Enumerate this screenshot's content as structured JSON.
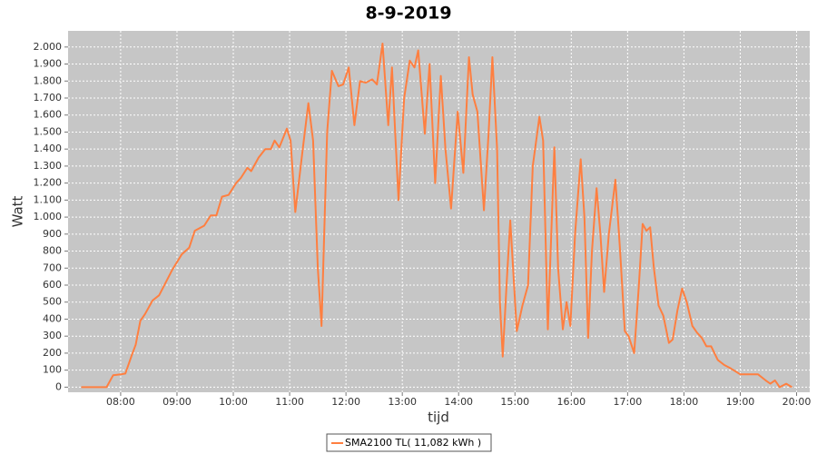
{
  "chart_data": {
    "type": "line",
    "title": "8-9-2019",
    "x_label": "tijd",
    "y_label": "Watt",
    "x": [
      "07:18",
      "07:45",
      "07:52",
      "08:00",
      "08:05",
      "08:12",
      "08:16",
      "08:21",
      "08:26",
      "08:34",
      "08:41",
      "08:55",
      "09:05",
      "09:13",
      "09:19",
      "09:29",
      "09:36",
      "09:42",
      "09:48",
      "09:55",
      "10:03",
      "10:08",
      "10:15",
      "10:19",
      "10:27",
      "10:34",
      "10:40",
      "10:44",
      "10:49",
      "10:57",
      "11:01",
      "11:06",
      "11:14",
      "11:20",
      "11:25",
      "11:30",
      "11:34",
      "11:40",
      "11:45",
      "11:52",
      "11:57",
      "12:03",
      "12:09",
      "12:15",
      "12:21",
      "12:28",
      "12:33",
      "12:39",
      "12:45",
      "12:49",
      "12:56",
      "13:02",
      "13:08",
      "13:13",
      "13:17",
      "13:24",
      "13:29",
      "13:35",
      "13:41",
      "13:46",
      "13:52",
      "13:59",
      "14:05",
      "14:11",
      "14:15",
      "14:20",
      "14:27",
      "14:32",
      "14:36",
      "14:41",
      "14:44",
      "14:47",
      "14:51",
      "14:55",
      "15:02",
      "15:08",
      "15:14",
      "15:19",
      "15:26",
      "15:30",
      "15:35",
      "15:42",
      "15:46",
      "15:51",
      "15:55",
      "15:59",
      "16:04",
      "16:10",
      "16:14",
      "16:18",
      "16:22",
      "16:27",
      "16:31",
      "16:35",
      "16:40",
      "16:47",
      "16:52",
      "16:57",
      "17:01",
      "17:07",
      "17:12",
      "17:16",
      "17:20",
      "17:24",
      "17:28",
      "17:33",
      "17:38",
      "17:44",
      "17:48",
      "17:53",
      "17:58",
      "18:03",
      "18:09",
      "18:14",
      "18:19",
      "18:24",
      "18:29",
      "18:36",
      "18:43",
      "18:50",
      "19:00",
      "19:19",
      "19:27",
      "19:32",
      "19:37",
      "19:42",
      "19:49",
      "19:55"
    ],
    "series": [
      {
        "name": "SMA2100 TL( 11,082 kWh )",
        "color": "#ff7f40",
        "values": [
          0,
          0,
          70,
          75,
          80,
          190,
          250,
          390,
          430,
          510,
          540,
          690,
          780,
          820,
          920,
          950,
          1010,
          1010,
          1120,
          1130,
          1200,
          1230,
          1290,
          1270,
          1350,
          1400,
          1400,
          1450,
          1410,
          1520,
          1450,
          1030,
          1400,
          1670,
          1450,
          700,
          360,
          1500,
          1860,
          1770,
          1780,
          1880,
          1540,
          1800,
          1790,
          1810,
          1780,
          2020,
          1540,
          1880,
          1100,
          1700,
          1920,
          1880,
          1980,
          1490,
          1900,
          1200,
          1830,
          1400,
          1050,
          1620,
          1260,
          1940,
          1720,
          1620,
          1040,
          1500,
          1940,
          1400,
          500,
          180,
          600,
          980,
          330,
          480,
          600,
          1300,
          1590,
          1450,
          340,
          1410,
          700,
          340,
          500,
          360,
          900,
          1340,
          1000,
          290,
          800,
          1170,
          900,
          560,
          900,
          1220,
          800,
          330,
          300,
          200,
          600,
          960,
          920,
          940,
          700,
          480,
          420,
          260,
          280,
          450,
          580,
          500,
          360,
          320,
          290,
          240,
          240,
          160,
          130,
          110,
          75,
          75,
          40,
          20,
          40,
          0,
          20,
          0
        ]
      }
    ],
    "xlim": [
      "07:04",
      "20:14"
    ],
    "xticks": [
      "08:00",
      "09:00",
      "10:00",
      "11:00",
      "12:00",
      "13:00",
      "14:00",
      "15:00",
      "16:00",
      "17:00",
      "18:00",
      "19:00",
      "20:00"
    ],
    "ylim": [
      -30,
      2095
    ],
    "yticks": [
      0,
      100,
      200,
      300,
      400,
      500,
      600,
      700,
      800,
      900,
      {
        "value": 1000,
        "label": "1.000"
      },
      {
        "value": 1100,
        "label": "1.100"
      },
      {
        "value": 1200,
        "label": "1.200"
      },
      {
        "value": 1300,
        "label": "1.300"
      },
      {
        "value": 1400,
        "label": "1.400"
      },
      {
        "value": 1500,
        "label": "1.500"
      },
      {
        "value": 1600,
        "label": "1.600"
      },
      {
        "value": 1700,
        "label": "1.700"
      },
      {
        "value": 1800,
        "label": "1.800"
      },
      {
        "value": 1900,
        "label": "1.900"
      },
      {
        "value": 2000,
        "label": "2.000"
      }
    ],
    "grid": true
  }
}
